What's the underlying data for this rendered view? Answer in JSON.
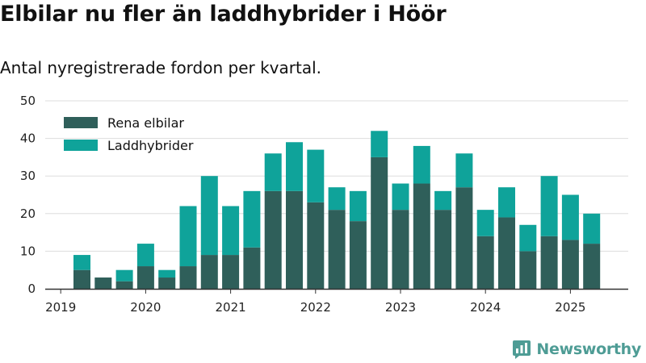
{
  "title": "Elbilar nu fler än laddhybrider i Höör",
  "subtitle": "Antal nyregistrerade fordon per kvartal.",
  "brand": "Newsworthy",
  "colors": {
    "rena_elbilar": "#2f5f5a",
    "laddhybrider": "#0fa39a",
    "grid": "#dddddd",
    "axis": "#333333",
    "brand": "#4e9c95"
  },
  "chart_data": {
    "type": "bar",
    "stacked": true,
    "categories": [
      "2019 Q2",
      "2019 Q3",
      "2019 Q4",
      "2020 Q1",
      "2020 Q2",
      "2020 Q3",
      "2020 Q4",
      "2021 Q1",
      "2021 Q2",
      "2021 Q3",
      "2021 Q4",
      "2022 Q1",
      "2022 Q2",
      "2022 Q3",
      "2022 Q4",
      "2023 Q1",
      "2023 Q2",
      "2023 Q3",
      "2023 Q4",
      "2024 Q1",
      "2024 Q2",
      "2024 Q3",
      "2024 Q4",
      "2025 Q1",
      "2025 Q2"
    ],
    "series": [
      {
        "name": "Rena elbilar",
        "values": [
          5,
          3,
          2,
          6,
          3,
          6,
          9,
          9,
          11,
          26,
          26,
          23,
          21,
          18,
          35,
          21,
          28,
          21,
          27,
          14,
          19,
          10,
          14,
          13,
          12
        ]
      },
      {
        "name": "Laddhybrider",
        "values": [
          4,
          0,
          3,
          6,
          2,
          16,
          21,
          13,
          15,
          10,
          13,
          14,
          6,
          8,
          7,
          7,
          10,
          5,
          9,
          7,
          8,
          7,
          16,
          12,
          8
        ]
      }
    ],
    "x_ticks": [
      "2019",
      "2020",
      "2021",
      "2022",
      "2023",
      "2024",
      "2025"
    ],
    "y_ticks": [
      "0",
      "10",
      "20",
      "30",
      "40",
      "50"
    ],
    "ylim": [
      0,
      50
    ],
    "grid": true,
    "legend_position": "top-left"
  }
}
